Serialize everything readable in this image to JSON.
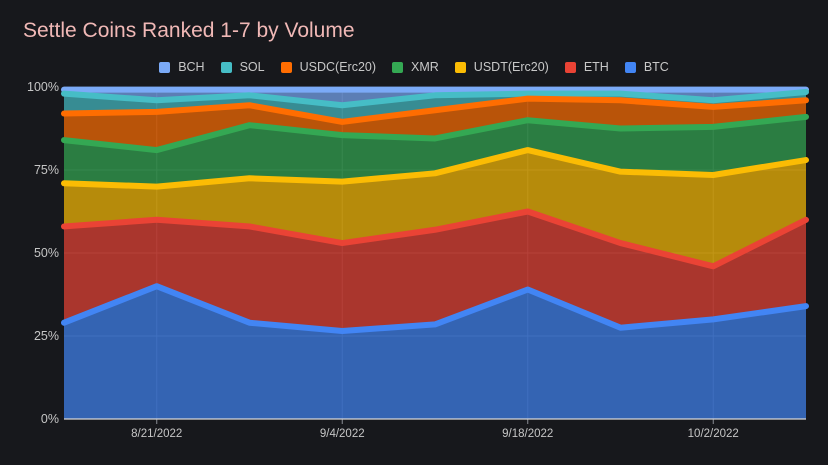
{
  "chart_data": {
    "type": "area",
    "stacked": true,
    "percent": true,
    "title": "Settle Coins Ranked 1-7 by Volume",
    "x": [
      "2022-08-14",
      "2022-08-21",
      "2022-08-28",
      "2022-09-04",
      "2022-09-11",
      "2022-09-18",
      "2022-09-25",
      "2022-10-02",
      "2022-10-09"
    ],
    "xticks": [
      {
        "x": "2022-08-21",
        "label": "8/21/2022"
      },
      {
        "x": "2022-09-04",
        "label": "9/4/2022"
      },
      {
        "x": "2022-09-18",
        "label": "9/18/2022"
      },
      {
        "x": "2022-10-02",
        "label": "10/2/2022"
      }
    ],
    "yticks": [
      {
        "v": 0,
        "label": "0%"
      },
      {
        "v": 25,
        "label": "25%"
      },
      {
        "v": 50,
        "label": "50%"
      },
      {
        "v": 75,
        "label": "75%"
      },
      {
        "v": 100,
        "label": "100%"
      }
    ],
    "ylim": [
      0,
      100
    ],
    "xlabel": "",
    "ylabel": "",
    "legend_position": "top-center",
    "legend_order": [
      "BCH",
      "SOL",
      "USDC(Erc20)",
      "XMR",
      "USDT(Erc20)",
      "ETH",
      "BTC"
    ],
    "series": [
      {
        "name": "BTC",
        "color": "#4285f4",
        "values": [
          29,
          40,
          29,
          26.5,
          28.5,
          39,
          27.5,
          30,
          34
        ]
      },
      {
        "name": "ETH",
        "color": "#ea4335",
        "values": [
          29,
          20,
          29,
          26.5,
          28.5,
          23.5,
          25.5,
          16,
          26
        ]
      },
      {
        "name": "USDT(Erc20)",
        "color": "#fbbc04",
        "values": [
          13,
          10,
          14.5,
          18.5,
          17,
          18.5,
          21.5,
          27.5,
          18
        ]
      },
      {
        "name": "XMR",
        "color": "#34a853",
        "values": [
          13,
          11,
          16,
          14,
          10.5,
          9,
          13,
          14.5,
          13
        ]
      },
      {
        "name": "USDC(Erc20)",
        "color": "#ff6d01",
        "values": [
          8,
          11.5,
          6,
          4,
          8.5,
          6.5,
          8.5,
          6,
          5
        ]
      },
      {
        "name": "SOL",
        "color": "#46bdc6",
        "values": [
          6,
          3.5,
          3,
          5,
          4.5,
          1.5,
          2,
          2,
          2.5
        ]
      },
      {
        "name": "BCH",
        "color": "#7baaf7",
        "values": [
          2,
          4,
          2.5,
          5.5,
          2.5,
          2,
          2,
          4,
          1.5
        ]
      }
    ]
  }
}
